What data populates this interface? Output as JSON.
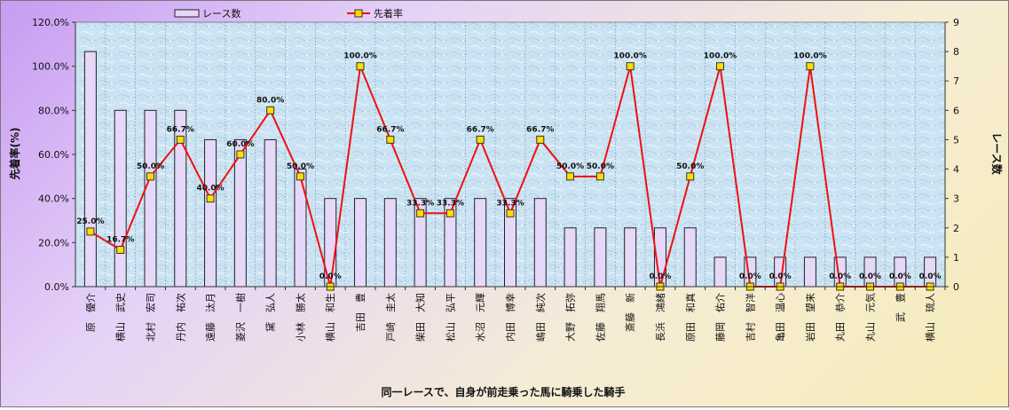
{
  "chart_data": {
    "type": "bar+line",
    "xlabel": "同一レースで、自身が前走乗った馬に騎乗した騎手",
    "ylabel_left": "先着率(%)",
    "ylabel_right": "レース数",
    "ylim_left": [
      0,
      120
    ],
    "ylim_right": [
      0,
      9
    ],
    "left_ticks": [
      "0.0%",
      "20.0%",
      "40.0%",
      "60.0%",
      "80.0%",
      "100.0%",
      "120.0%"
    ],
    "right_ticks": [
      "0",
      "1",
      "2",
      "3",
      "4",
      "5",
      "6",
      "7",
      "8",
      "9"
    ],
    "legend": {
      "bar": "レース数",
      "line": "先着率"
    },
    "categories": [
      "原　優介",
      "横山　武史",
      "北村　宏司",
      "丹内　祐次",
      "遠藤　汰月",
      "菱沢　一樹",
      "黛　弘人",
      "小林　勝太",
      "横山　和生",
      "吉田　豊",
      "戸崎　圭太",
      "柴田　大知",
      "松山　弘平",
      "水沼　元輝",
      "内田　博幸",
      "嶋田　純次",
      "大野　拓弥",
      "佐藤　翔馬",
      "斎藤　新",
      "長浜　鴻緒",
      "原田　和真",
      "藤岡　佑介",
      "吉村　智洋",
      "亀田　温心",
      "岩田　望来",
      "丸田　恭介",
      "丸山　元気",
      "武　豊",
      "横山　琉人"
    ],
    "series": [
      {
        "name": "レース数",
        "type": "bar",
        "values": [
          8,
          6,
          6,
          6,
          5,
          5,
          5,
          4,
          3,
          3,
          3,
          3,
          3,
          3,
          3,
          3,
          2,
          2,
          2,
          2,
          2,
          1,
          1,
          1,
          1,
          1,
          1,
          1,
          1
        ]
      },
      {
        "name": "先着率",
        "type": "line",
        "values": [
          25.0,
          16.7,
          50.0,
          66.7,
          40.0,
          60.0,
          80.0,
          50.0,
          0.0,
          100.0,
          66.7,
          33.3,
          33.3,
          66.7,
          33.3,
          66.7,
          50.0,
          50.0,
          100.0,
          0.0,
          50.0,
          100.0,
          0.0,
          0.0,
          100.0,
          0.0,
          0.0,
          0.0,
          0.0
        ]
      }
    ],
    "point_labels": [
      "25.0%",
      "16.7%",
      "50.0%",
      "66.7%",
      "40.0%",
      "60.0%",
      "80.0%",
      "50.0%",
      "0.0%",
      "100.0%",
      "66.7%",
      "33.3%",
      "33.3%",
      "66.7%",
      "33.3%",
      "66.7%",
      "50.0%",
      "50.0%",
      "100.0%",
      "0.0%",
      "50.0%",
      "100.0%",
      "0.0%",
      "0.0%",
      "100.0%",
      "0.0%",
      "0.0%",
      "0.0%",
      "0.0%"
    ],
    "colors": {
      "bar_fill": "#e6d8f8",
      "bar_stroke": "#222222",
      "line": "#ee1111",
      "marker": "#ffdd00",
      "marker_stroke": "#333333"
    },
    "grid": true
  }
}
